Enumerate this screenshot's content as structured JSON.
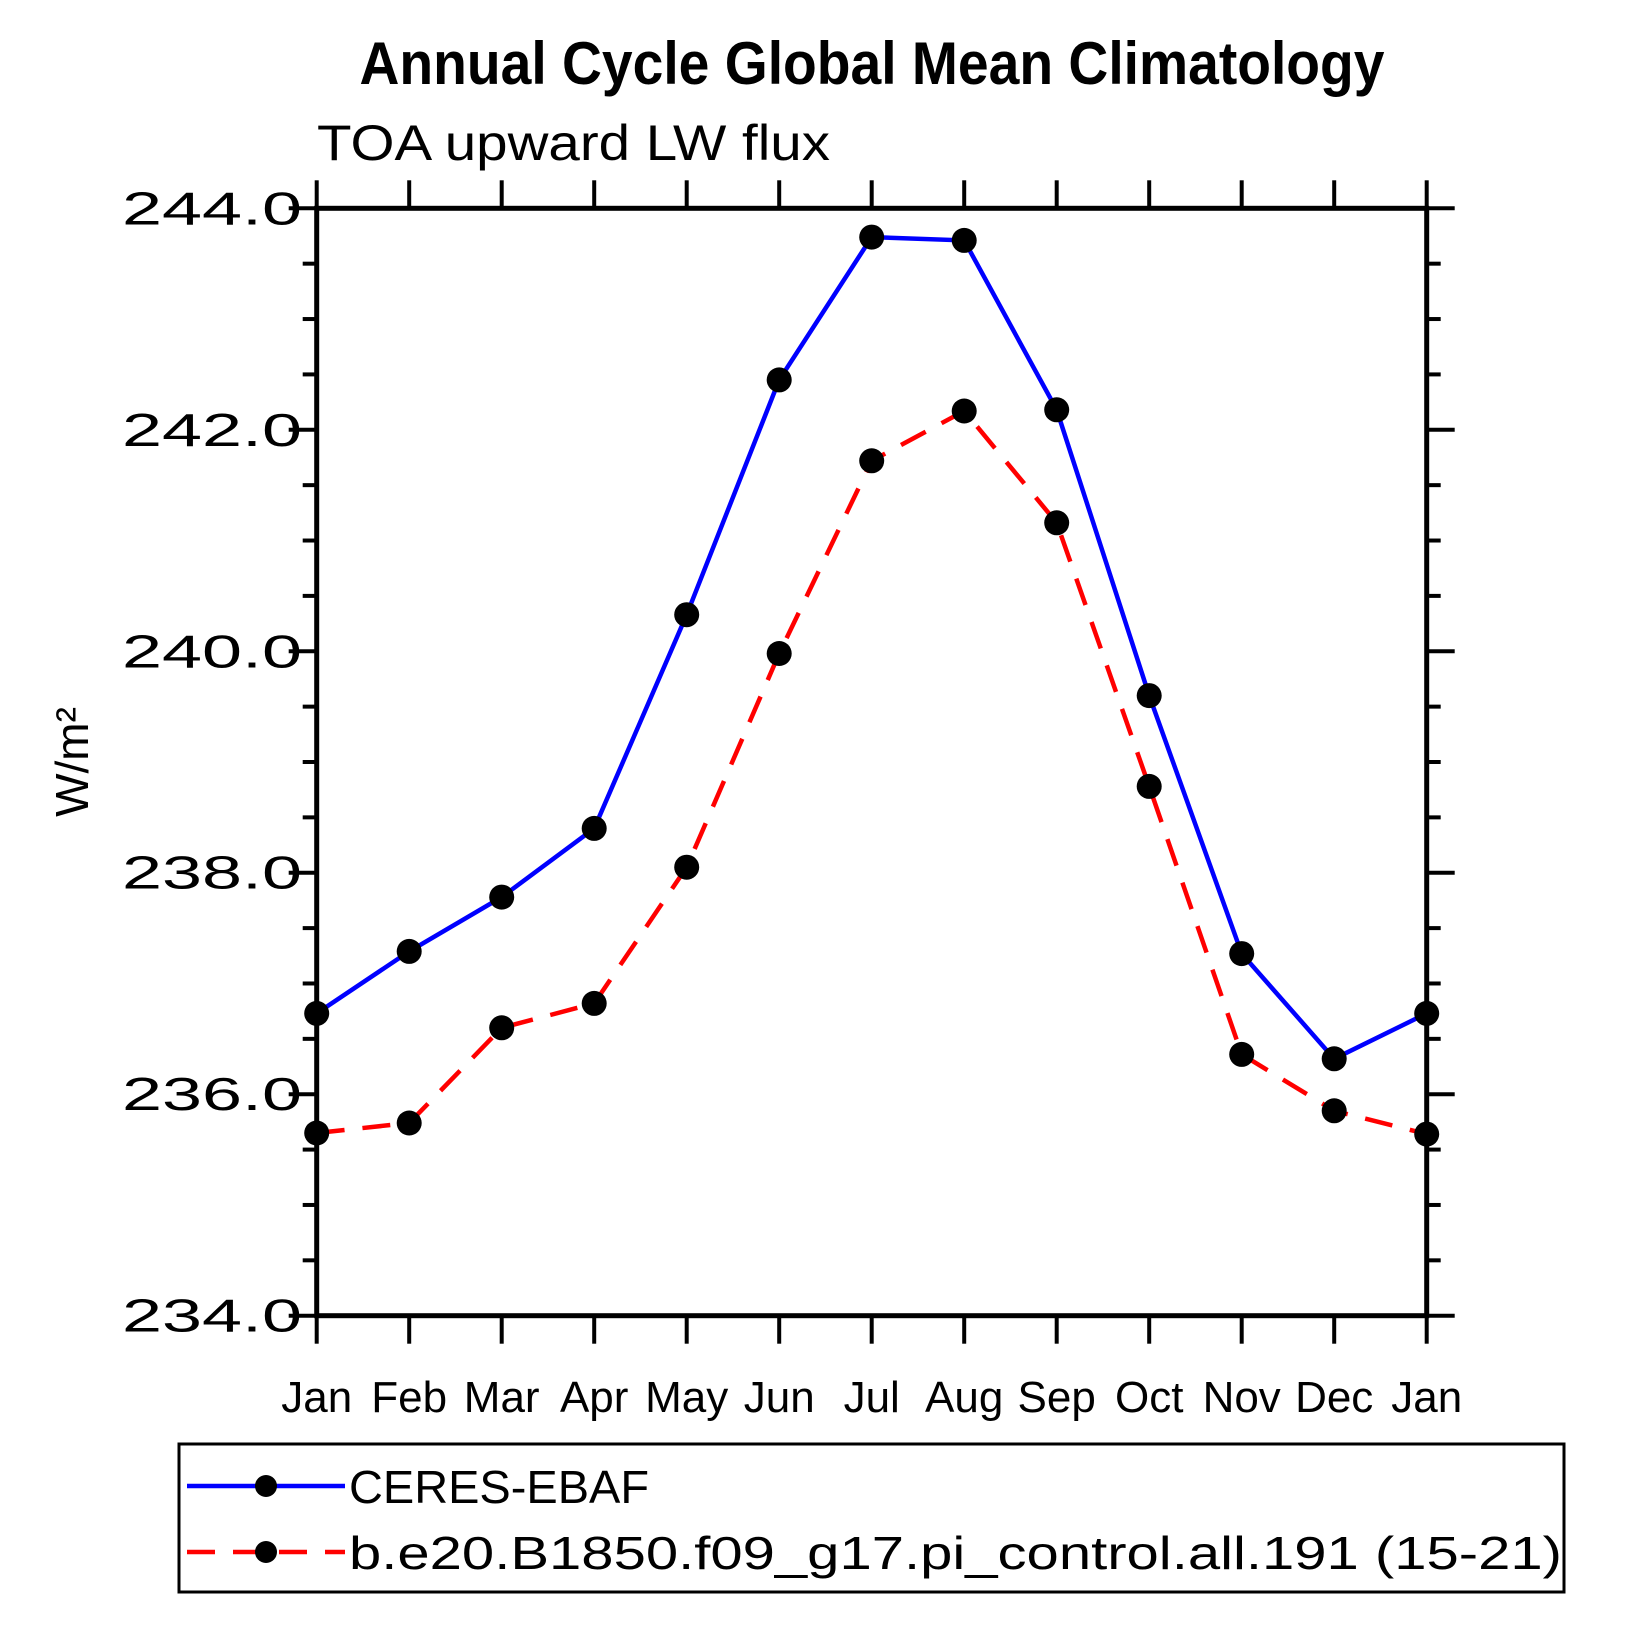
{
  "chart_data": {
    "type": "line",
    "title": "Annual Cycle Global Mean Climatology",
    "subtitle": "TOA upward LW flux",
    "ylabel": "W/m²",
    "xlabel": "",
    "categories": [
      "Jan",
      "Feb",
      "Mar",
      "Apr",
      "May",
      "Jun",
      "Jul",
      "Aug",
      "Sep",
      "Oct",
      "Nov",
      "Dec",
      "Jan"
    ],
    "series": [
      {
        "name": "CERES-EBAF",
        "color": "#0000ff",
        "line_style": "solid",
        "marker": "filled-circle",
        "marker_color": "#000000",
        "values": [
          236.73,
          237.29,
          237.78,
          238.4,
          240.33,
          242.45,
          243.74,
          243.71,
          242.18,
          239.6,
          237.27,
          236.32,
          236.73
        ]
      },
      {
        "name": "b.e20.B1850.f09_g17.pi_control.all.191 (15-21)",
        "color": "#ff0000",
        "line_style": "dashed",
        "marker": "filled-circle",
        "marker_color": "#000000",
        "values": [
          235.65,
          235.74,
          236.6,
          236.82,
          238.05,
          239.98,
          241.72,
          242.17,
          241.16,
          238.78,
          236.36,
          235.85,
          235.64
        ]
      }
    ],
    "ylim": [
      234.0,
      244.0
    ],
    "yticks_major": [
      {
        "value": 234.0,
        "label": "234.0"
      },
      {
        "value": 236.0,
        "label": "236.0"
      },
      {
        "value": 238.0,
        "label": "238.0"
      },
      {
        "value": 240.0,
        "label": "240.0"
      },
      {
        "value": 242.0,
        "label": "242.0"
      },
      {
        "value": 244.0,
        "label": "244.0"
      }
    ],
    "ytick_minor_step": 0.5,
    "grid": false,
    "legend_position": "bottom-left",
    "axis_color": "#000000",
    "background_color": "#ffffff"
  }
}
